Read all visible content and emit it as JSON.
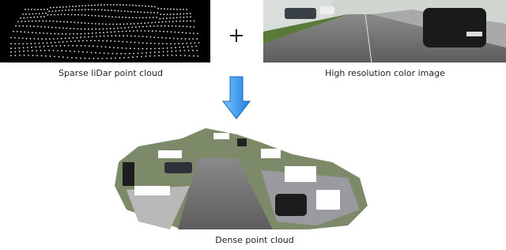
{
  "inputs": [
    {
      "caption": "Sparse liDar point cloud"
    },
    {
      "caption": "High resolution color image"
    }
  ],
  "output": {
    "caption": "Dense point cloud"
  }
}
